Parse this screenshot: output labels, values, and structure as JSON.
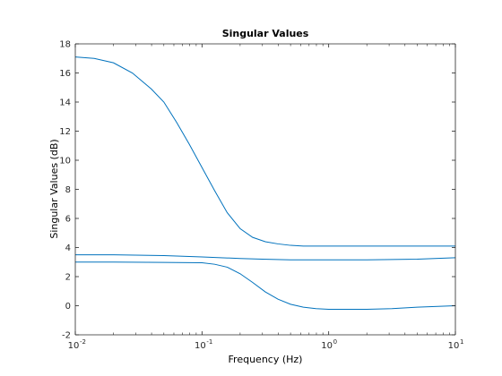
{
  "chart_data": {
    "type": "line",
    "title": "Singular Values",
    "xlabel": "Frequency (Hz)",
    "ylabel": "Singular Values (dB)",
    "xscale": "log",
    "xlim": [
      0.01,
      10
    ],
    "ylim": [
      -2,
      18
    ],
    "grid": false,
    "x_ticks": [
      {
        "value": 0.01,
        "base": "10",
        "exp": "-2"
      },
      {
        "value": 0.1,
        "base": "10",
        "exp": "-1"
      },
      {
        "value": 1,
        "base": "10",
        "exp": "0"
      },
      {
        "value": 10,
        "base": "10",
        "exp": "1"
      }
    ],
    "y_ticks": [
      {
        "value": -2,
        "label": "-2"
      },
      {
        "value": 0,
        "label": "0"
      },
      {
        "value": 2,
        "label": "2"
      },
      {
        "value": 4,
        "label": "4"
      },
      {
        "value": 6,
        "label": "6"
      },
      {
        "value": 8,
        "label": "8"
      },
      {
        "value": 10,
        "label": "10"
      },
      {
        "value": 12,
        "label": "12"
      },
      {
        "value": 14,
        "label": "14"
      },
      {
        "value": 16,
        "label": "16"
      },
      {
        "value": 18,
        "label": "18"
      }
    ],
    "series_color": "#0072bd",
    "series": [
      {
        "x": [
          0.01,
          0.0141,
          0.02,
          0.0282,
          0.0398,
          0.05,
          0.0631,
          0.0794,
          0.1,
          0.126,
          0.158,
          0.2,
          0.251,
          0.316,
          0.398,
          0.5,
          0.631,
          1,
          2,
          5,
          10
        ],
        "values": [
          17.1,
          17.0,
          16.7,
          16.0,
          14.9,
          14.0,
          12.6,
          11.1,
          9.5,
          7.9,
          6.4,
          5.3,
          4.7,
          4.4,
          4.25,
          4.15,
          4.1,
          4.1,
          4.1,
          4.1,
          4.1
        ]
      },
      {
        "x": [
          0.01,
          0.02,
          0.05,
          0.1,
          0.2,
          0.3,
          0.5,
          1,
          2,
          5,
          10
        ],
        "values": [
          3.5,
          3.5,
          3.45,
          3.35,
          3.25,
          3.2,
          3.15,
          3.15,
          3.15,
          3.2,
          3.3
        ]
      },
      {
        "x": [
          0.01,
          0.02,
          0.05,
          0.1,
          0.126,
          0.158,
          0.2,
          0.251,
          0.316,
          0.398,
          0.5,
          0.631,
          0.794,
          1,
          1.26,
          2,
          3.16,
          5,
          10
        ],
        "values": [
          3.0,
          3.0,
          2.98,
          2.95,
          2.85,
          2.65,
          2.2,
          1.6,
          0.95,
          0.45,
          0.1,
          -0.1,
          -0.2,
          -0.25,
          -0.25,
          -0.25,
          -0.2,
          -0.1,
          0.0
        ]
      }
    ]
  }
}
